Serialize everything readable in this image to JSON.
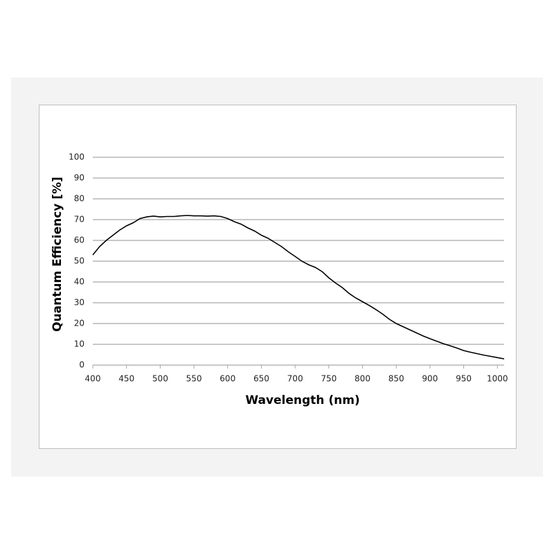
{
  "chart_data": {
    "type": "line",
    "xlabel": "Wavelength (nm)",
    "ylabel": "Quantum Efficiency [%]",
    "x": [
      400,
      410,
      420,
      430,
      440,
      450,
      460,
      470,
      480,
      490,
      500,
      510,
      520,
      530,
      540,
      550,
      560,
      570,
      580,
      590,
      600,
      610,
      620,
      630,
      640,
      650,
      660,
      670,
      680,
      690,
      700,
      710,
      720,
      730,
      740,
      750,
      760,
      770,
      780,
      790,
      800,
      810,
      820,
      830,
      840,
      850,
      860,
      870,
      880,
      890,
      900,
      910,
      920,
      930,
      940,
      950,
      960,
      970,
      980,
      990,
      1000,
      1010
    ],
    "series": [
      {
        "color": "#000000",
        "values": [
          53,
          57,
          60,
          62.5,
          65,
          67,
          68.5,
          70.5,
          71.3,
          71.7,
          71.3,
          71.5,
          71.5,
          71.8,
          72,
          71.8,
          71.8,
          71.7,
          71.8,
          71.5,
          70.5,
          69,
          67.8,
          66,
          64.5,
          62.5,
          61,
          59,
          57,
          54.5,
          52.3,
          50,
          48.3,
          47,
          45,
          42,
          39.5,
          37.3,
          34.5,
          32.3,
          30.5,
          28.7,
          26.7,
          24.5,
          22,
          20,
          18.5,
          17,
          15.5,
          14,
          12.7,
          11.5,
          10.3,
          9.3,
          8.2,
          7,
          6.2,
          5.5,
          4.8,
          4.2,
          3.6,
          3
        ]
      }
    ],
    "xlim": [
      400,
      1010
    ],
    "xticks": [
      400,
      450,
      500,
      550,
      600,
      650,
      700,
      750,
      800,
      850,
      900,
      950,
      1000
    ],
    "ylim": [
      0,
      100
    ],
    "yticks": [
      0,
      10,
      20,
      30,
      40,
      50,
      60,
      70,
      80,
      90,
      100
    ],
    "grid": true,
    "grid_color": "#a6a6a6"
  }
}
